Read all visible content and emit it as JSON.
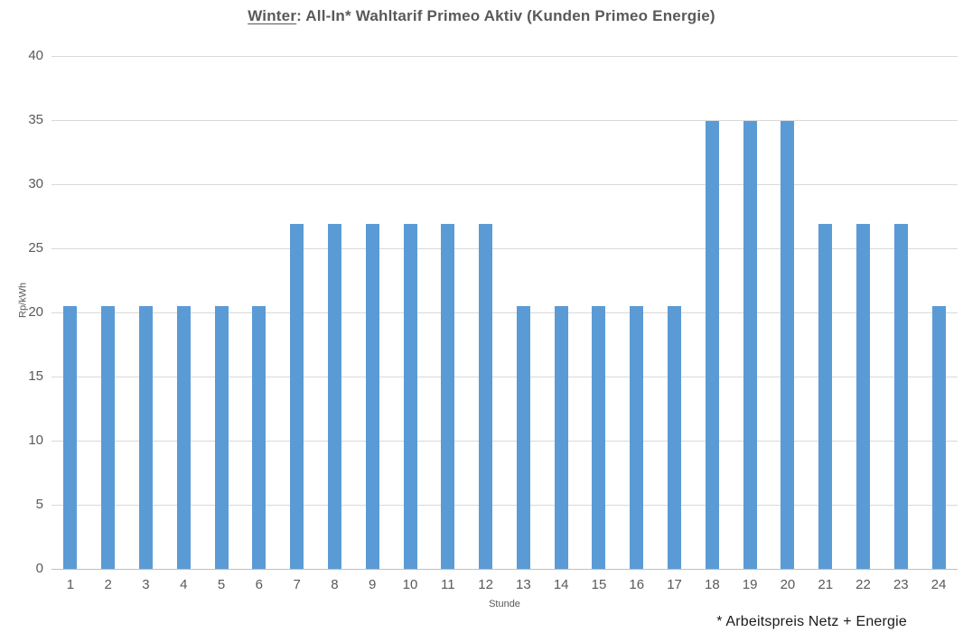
{
  "title": {
    "underlined": "Winter",
    "rest": ": All-In* Wahltarif Primeo Aktiv (Kunden Primeo Energie)"
  },
  "footnote": "* Arbeitspreis Netz + Energie",
  "chart_data": {
    "type": "bar",
    "title": "Winter: All-In* Wahltarif Primeo Aktiv (Kunden Primeo Energie)",
    "xlabel": "Stunde",
    "ylabel": "Rp/kWh",
    "categories": [
      "1",
      "2",
      "3",
      "4",
      "5",
      "6",
      "7",
      "8",
      "9",
      "10",
      "11",
      "12",
      "13",
      "14",
      "15",
      "16",
      "17",
      "18",
      "19",
      "20",
      "21",
      "22",
      "23",
      "24"
    ],
    "values": [
      20.5,
      20.5,
      20.5,
      20.5,
      20.5,
      20.5,
      26.9,
      26.9,
      26.9,
      26.9,
      26.9,
      26.9,
      20.5,
      20.5,
      20.5,
      20.5,
      20.5,
      34.9,
      34.9,
      34.9,
      26.9,
      26.9,
      26.9,
      20.5
    ],
    "ylim": [
      0,
      40
    ],
    "ytick_step": 5,
    "grid": true,
    "legend": "none",
    "colors": {
      "bar": "#5B9BD5",
      "gridline": "#D9D9D9",
      "axis_line": "#BFBFBF",
      "axis_text": "#595959",
      "title_text": "#595959",
      "footnote_text": "#1a1a1a"
    }
  }
}
